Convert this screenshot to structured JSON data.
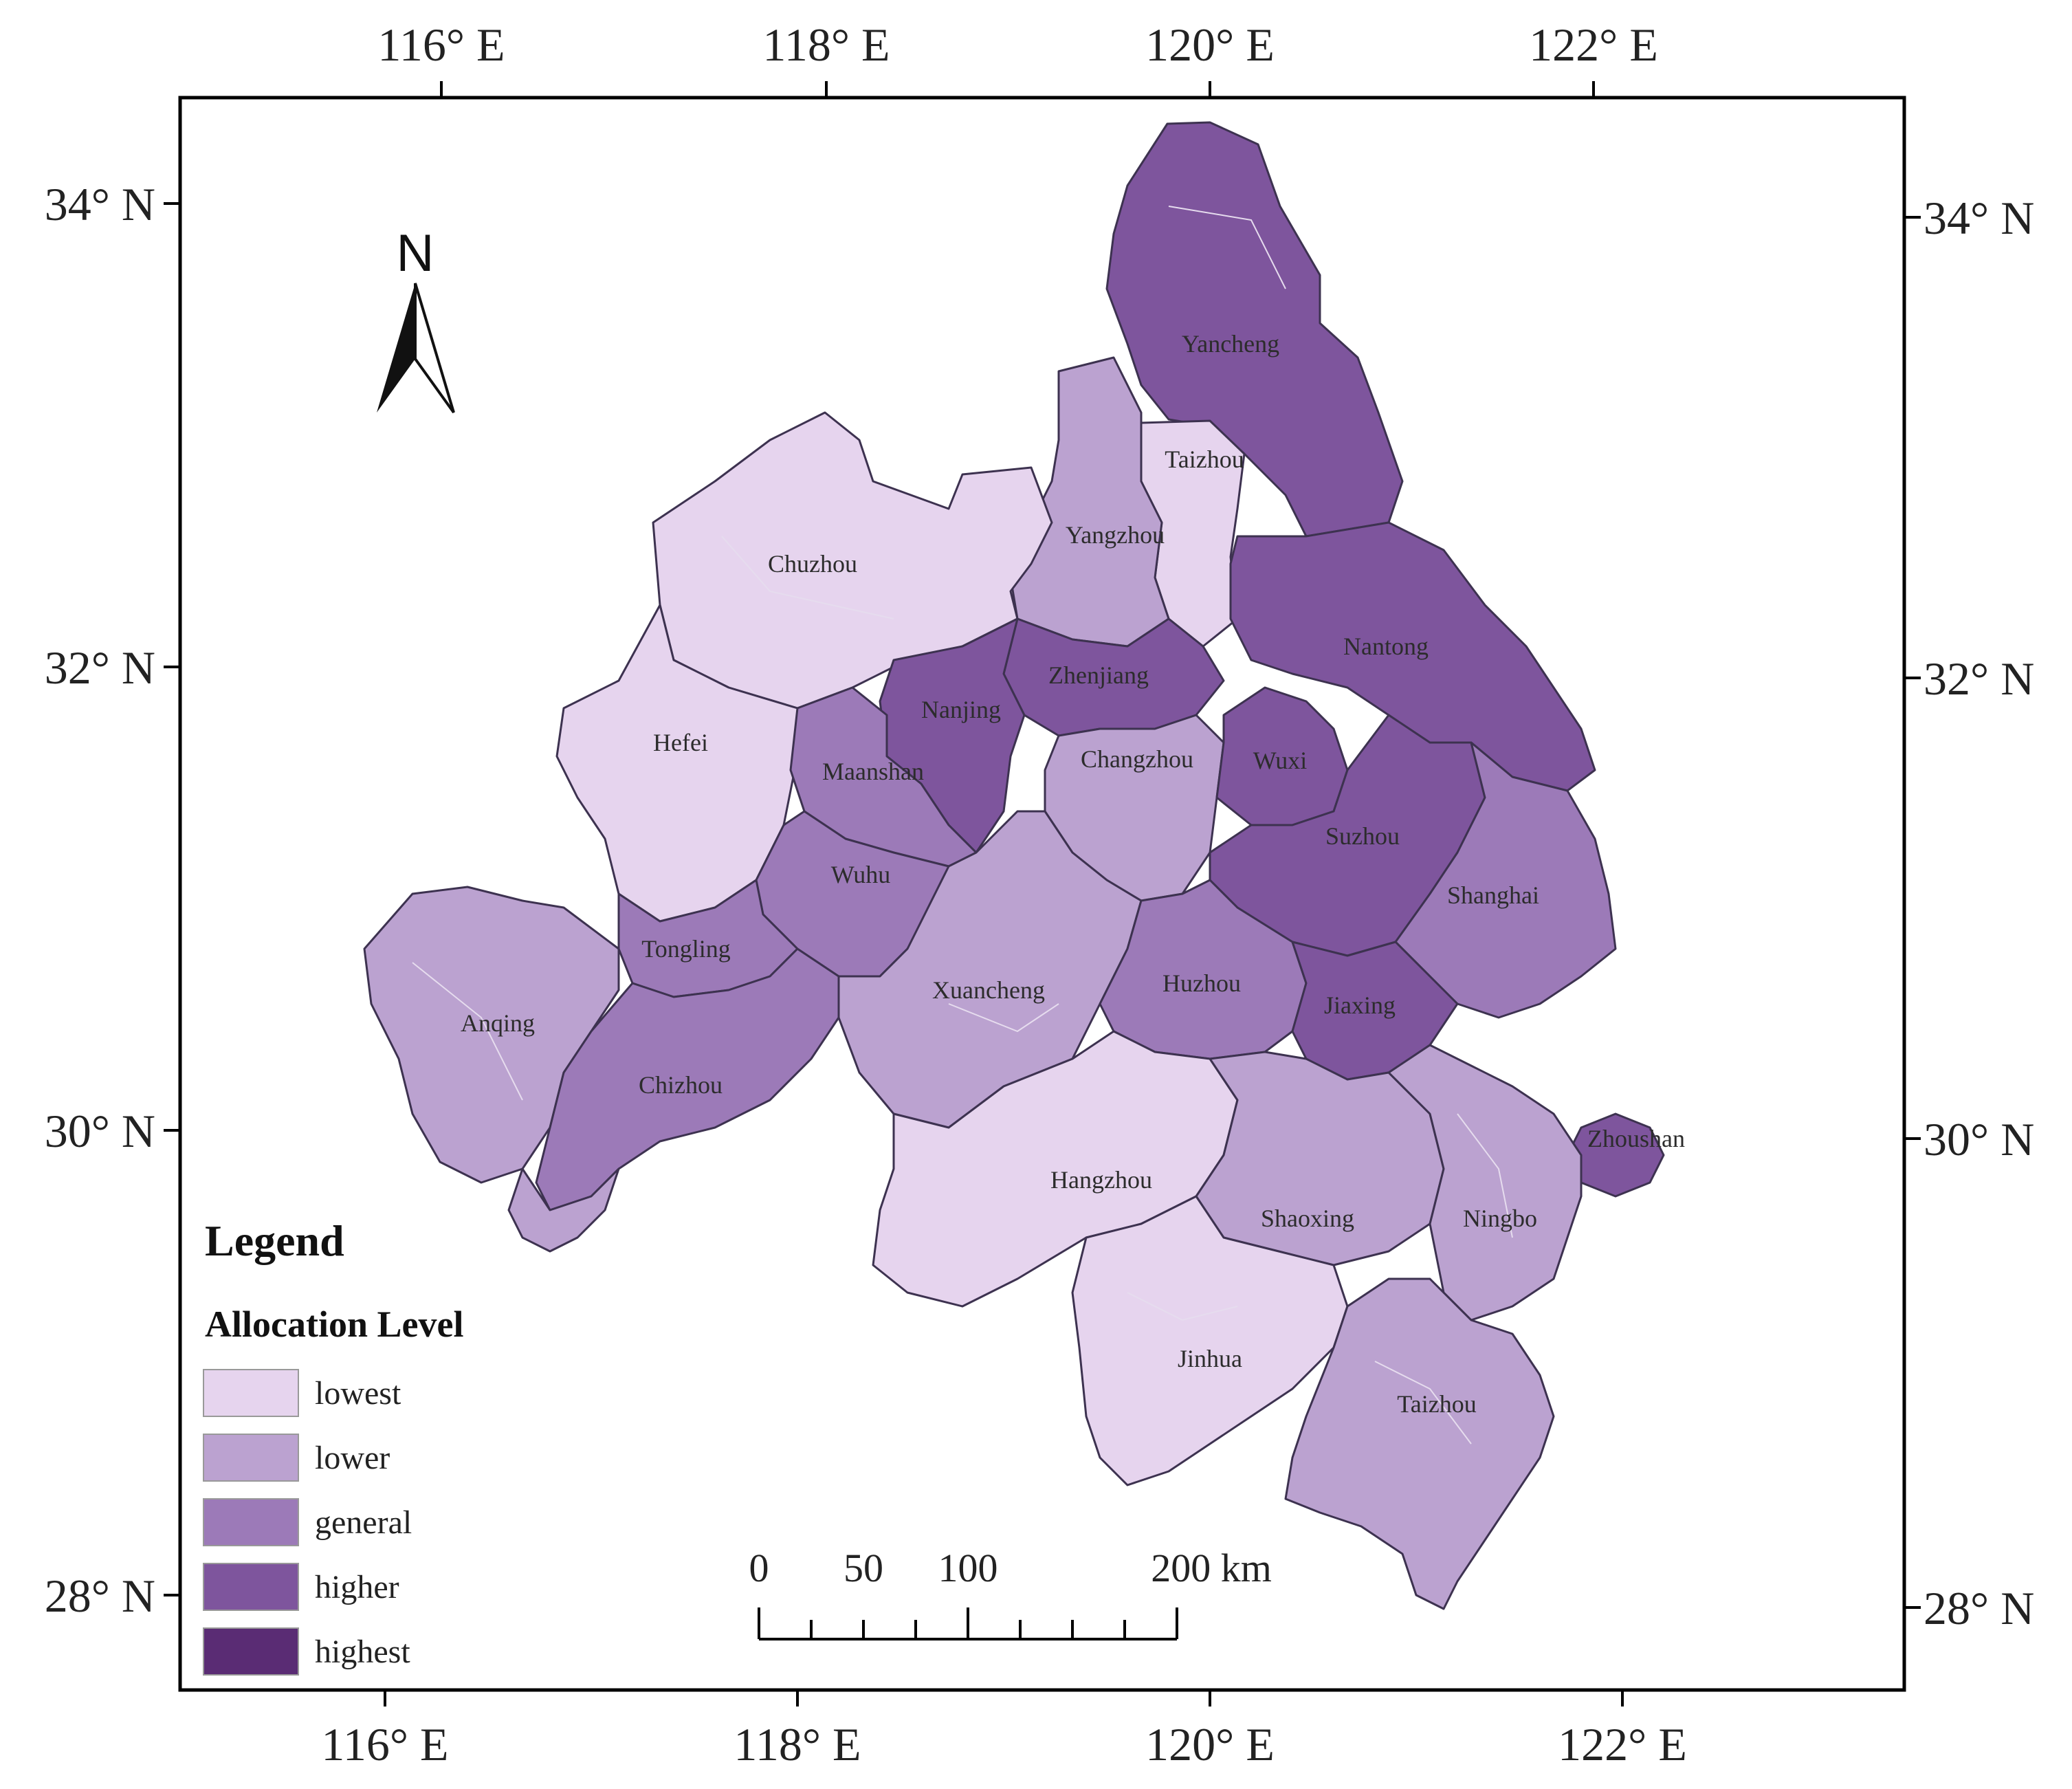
{
  "axes": {
    "lon_labels": [
      "116° E",
      "118° E",
      "120° E",
      "122° E"
    ],
    "lat_labels": [
      "34° N",
      "32° N",
      "30° N",
      "28° N"
    ]
  },
  "north_arrow": {
    "label": "N",
    "icon": "north-arrow-icon"
  },
  "legend": {
    "title": "Legend",
    "subtitle": "Allocation Level",
    "items": [
      {
        "label": "lowest",
        "color": "#e6d4ee"
      },
      {
        "label": "lower",
        "color": "#bba2d0"
      },
      {
        "label": "general",
        "color": "#9c7ab8"
      },
      {
        "label": "higher",
        "color": "#7e559d"
      },
      {
        "label": "highest",
        "color": "#5a2c74"
      }
    ]
  },
  "scale_bar": {
    "labels": [
      "0",
      "50",
      "100",
      "200 km"
    ]
  },
  "cities": [
    {
      "name": "Yancheng",
      "level": "higher"
    },
    {
      "name": "Taizhou",
      "level": "lowest"
    },
    {
      "name": "Chuzhou",
      "level": "lowest"
    },
    {
      "name": "Yangzhou",
      "level": "lower"
    },
    {
      "name": "Nantong",
      "level": "higher"
    },
    {
      "name": "Zhenjiang",
      "level": "higher"
    },
    {
      "name": "Nanjing",
      "level": "higher"
    },
    {
      "name": "Hefei",
      "level": "lowest"
    },
    {
      "name": "Maanshan",
      "level": "general"
    },
    {
      "name": "Changzhou",
      "level": "lower"
    },
    {
      "name": "Wuxi",
      "level": "higher"
    },
    {
      "name": "Suzhou",
      "level": "higher"
    },
    {
      "name": "Shanghai",
      "level": "general"
    },
    {
      "name": "Wuhu",
      "level": "general"
    },
    {
      "name": "Tongling",
      "level": "general"
    },
    {
      "name": "Xuancheng",
      "level": "lower"
    },
    {
      "name": "Huzhou",
      "level": "general"
    },
    {
      "name": "Jiaxing",
      "level": "higher"
    },
    {
      "name": "Anqing",
      "level": "lower"
    },
    {
      "name": "Chizhou",
      "level": "general"
    },
    {
      "name": "Zhoushan",
      "level": "higher"
    },
    {
      "name": "Hangzhou",
      "level": "lowest"
    },
    {
      "name": "Shaoxing",
      "level": "lower"
    },
    {
      "name": "Ningbo",
      "level": "lower"
    },
    {
      "name": "Jinhua",
      "level": "lowest"
    },
    {
      "name": "Taizhou",
      "level": "lower"
    }
  ]
}
